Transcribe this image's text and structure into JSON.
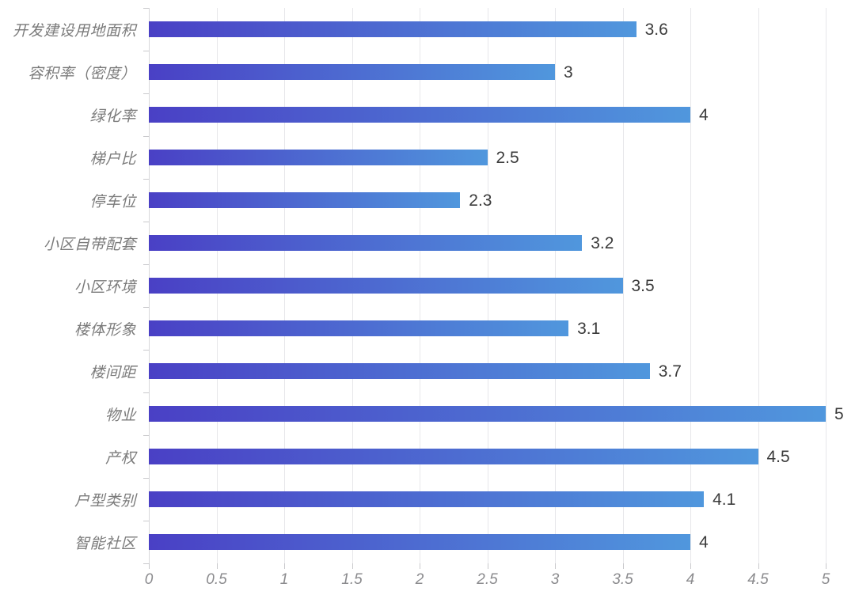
{
  "chart_data": {
    "type": "bar",
    "orientation": "horizontal",
    "title": "",
    "xlabel": "",
    "ylabel": "",
    "xlim": [
      0,
      5
    ],
    "grid": true,
    "legend": false,
    "categories": [
      "开发建设用地面积",
      "容积率（密度）",
      "绿化率",
      "梯户比",
      "停车位",
      "小区自带配套",
      "小区环境",
      "楼体形象",
      "楼间距",
      "物业",
      "产权",
      "户型类别",
      "智能社区"
    ],
    "values": [
      3.6,
      3,
      4,
      2.5,
      2.3,
      3.2,
      3.5,
      3.1,
      3.7,
      5,
      4.5,
      4.1,
      4
    ],
    "value_labels": [
      "3.6",
      "3",
      "4",
      "2.5",
      "2.3",
      "3.2",
      "3.5",
      "3.1",
      "3.7",
      "5",
      "4.5",
      "4.1",
      "4"
    ],
    "x_tick_labels": [
      "0",
      "0.5",
      "1",
      "1.5",
      "2",
      "2.5",
      "3",
      "3.5",
      "4",
      "4.5",
      "5"
    ],
    "x_tick_values": [
      0,
      0.5,
      1,
      1.5,
      2,
      2.5,
      3,
      3.5,
      4,
      4.5,
      5
    ],
    "colors": {
      "bar_gradient_start": "#4a40c5",
      "bar_gradient_end": "#5097dd",
      "gridline": "#e7e7ea",
      "axis_line": "#d7d7da",
      "tick": "#c9c9cc",
      "category_label": "#7b7b7b",
      "value_label": "#3b3b3b",
      "axis_tick_label": "#8b8b8e",
      "background": "#ffffff"
    }
  }
}
